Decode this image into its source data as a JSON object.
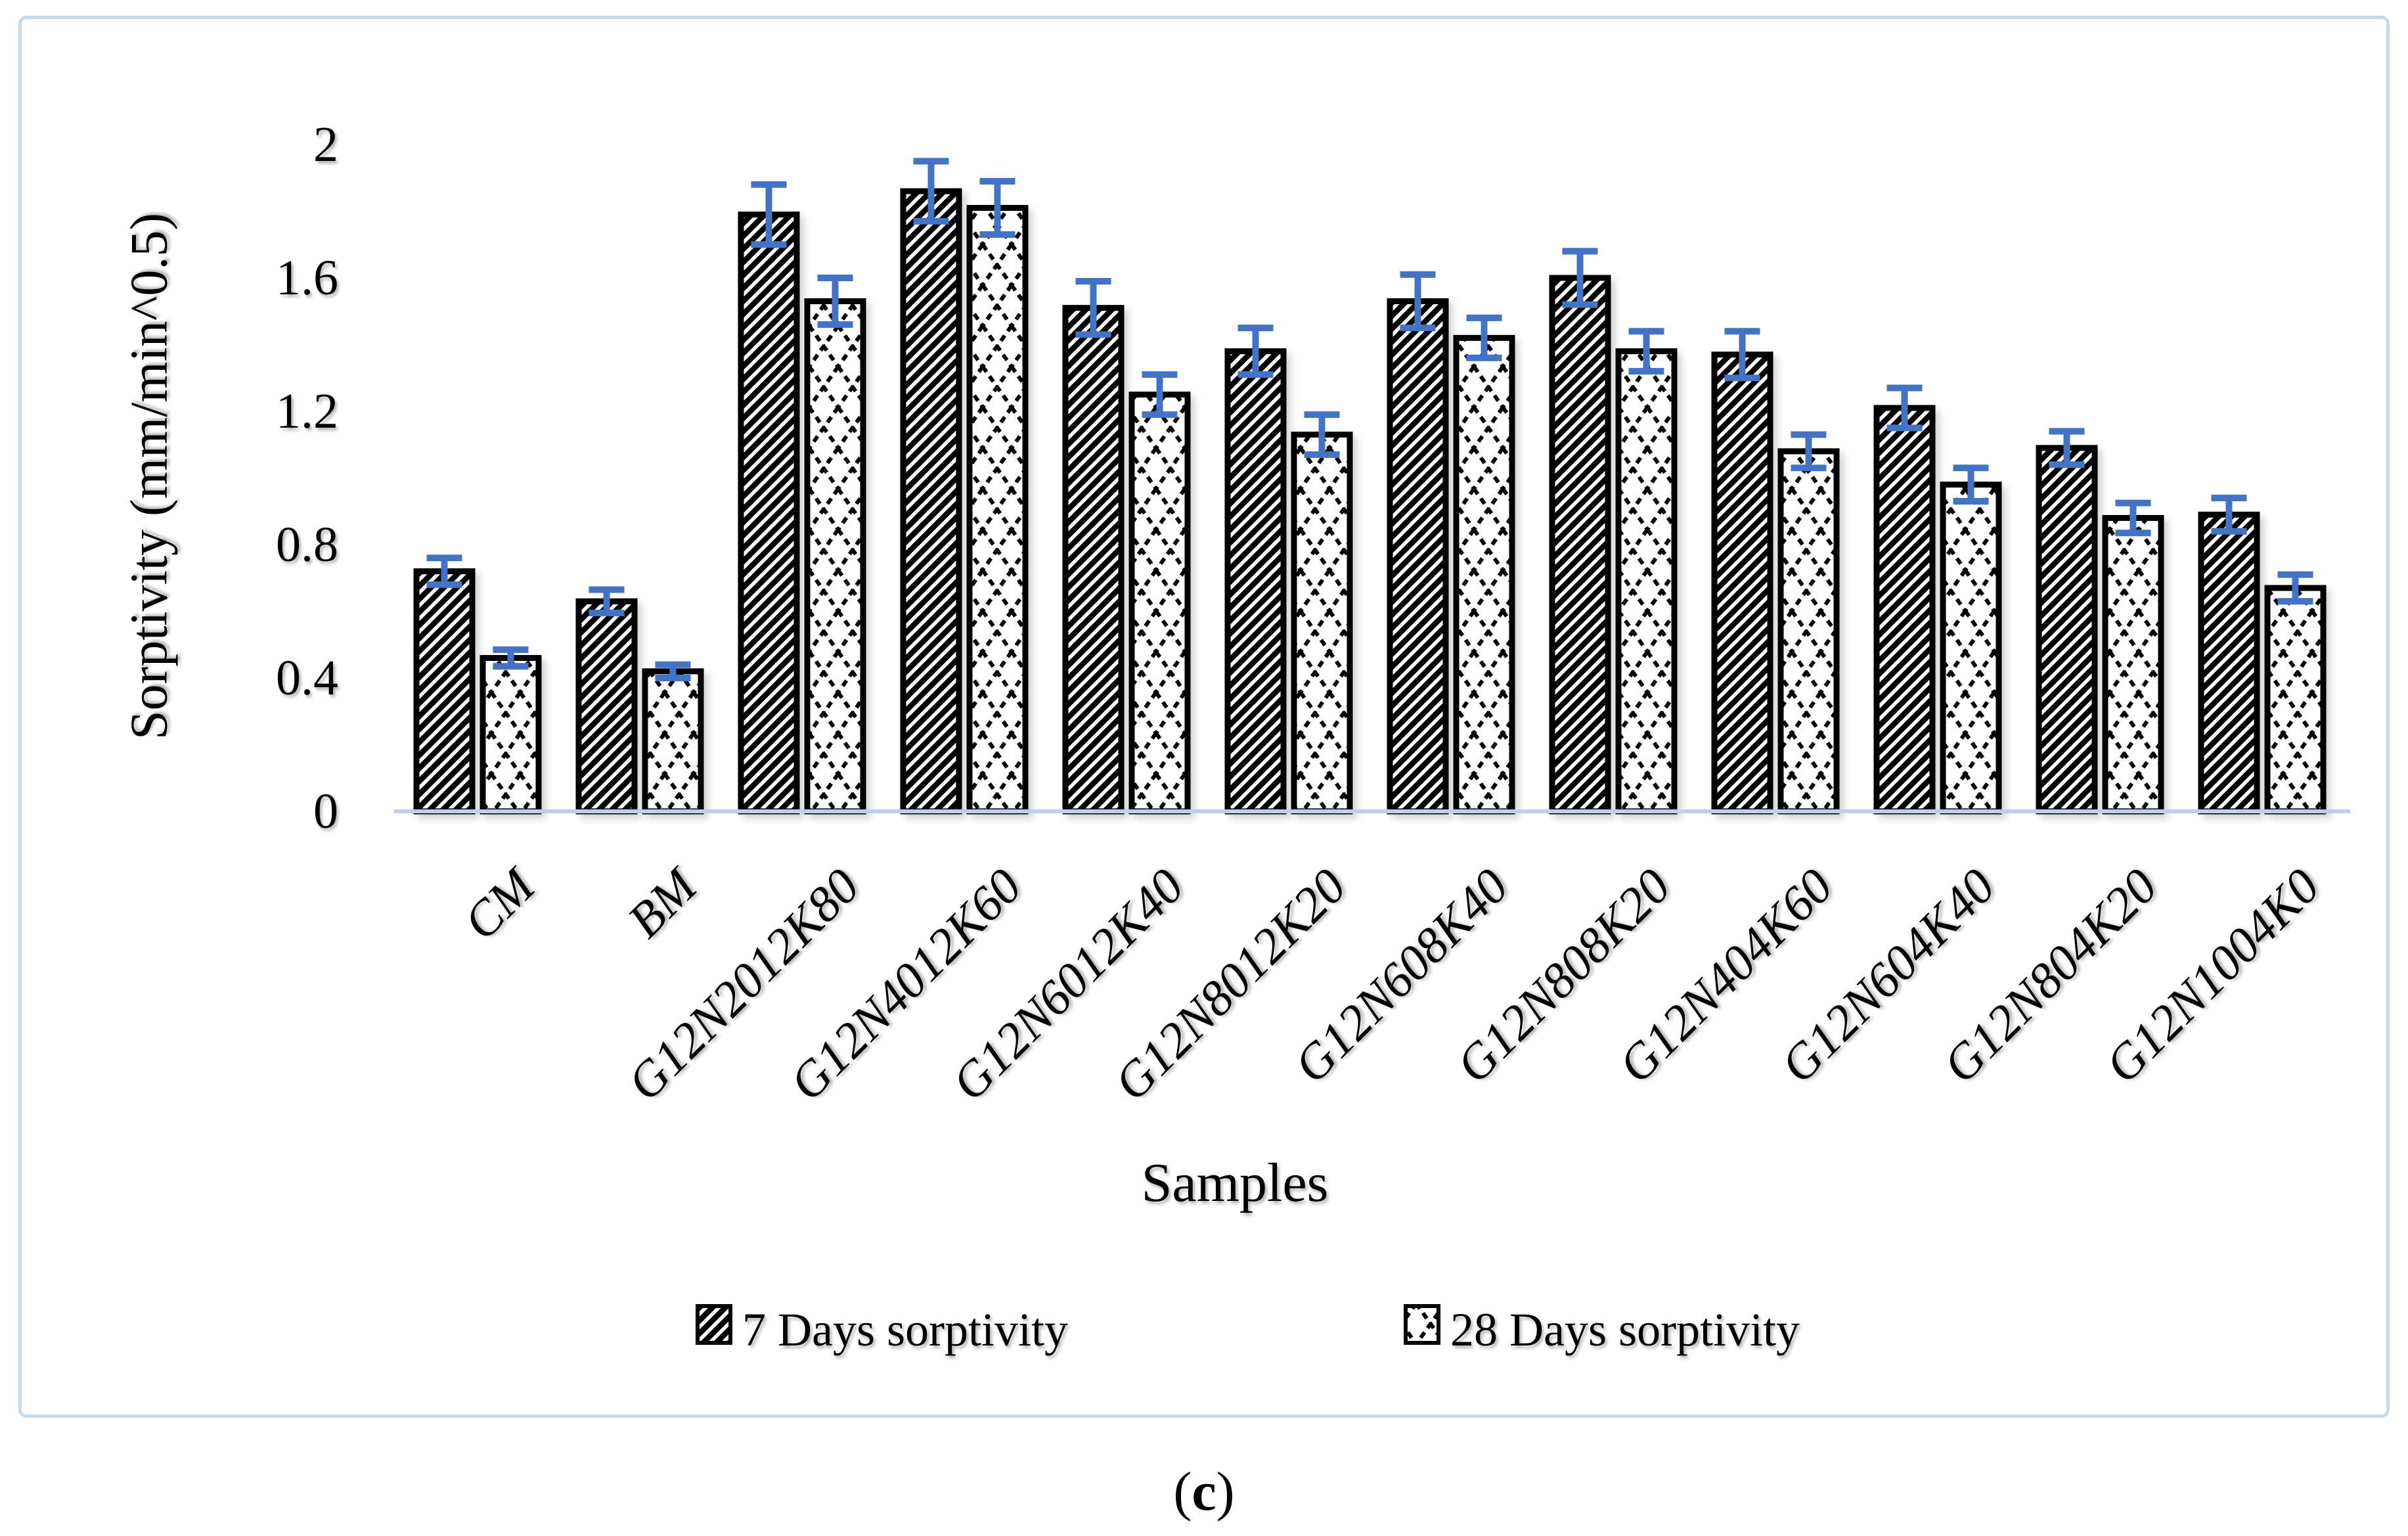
{
  "figure": {
    "caption_open": "(",
    "caption_letter": "c",
    "caption_close": ")"
  },
  "chart_data": {
    "type": "bar",
    "title": "",
    "xlabel": "Samples",
    "ylabel": "Sorptivity (mm/min^0.5)",
    "categories": [
      "CM",
      "BM",
      "G12N2012K80",
      "G12N4012K60",
      "G12N6012K40",
      "G12N8012K20",
      "G12N608K40",
      "G12N808K20",
      "G12N404K60",
      "G12N604K40",
      "G12N804K20",
      "G12N1004K0"
    ],
    "series": [
      {
        "name": "7 Days sorptivity",
        "pattern": "diagonal-stripes",
        "values": [
          0.72,
          0.63,
          1.79,
          1.86,
          1.51,
          1.38,
          1.53,
          1.6,
          1.37,
          1.21,
          1.09,
          0.89
        ],
        "errors": [
          0.04,
          0.035,
          0.09,
          0.09,
          0.08,
          0.07,
          0.08,
          0.08,
          0.07,
          0.06,
          0.05,
          0.05
        ]
      },
      {
        "name": "28 Days sorptivity",
        "pattern": "diamond-crosshatch",
        "values": [
          0.46,
          0.42,
          1.53,
          1.81,
          1.25,
          1.13,
          1.42,
          1.38,
          1.08,
          0.98,
          0.88,
          0.67
        ],
        "errors": [
          0.025,
          0.02,
          0.07,
          0.08,
          0.06,
          0.06,
          0.06,
          0.06,
          0.05,
          0.05,
          0.045,
          0.04
        ]
      }
    ],
    "ylim": [
      0,
      2
    ],
    "yticks": [
      0,
      0.4,
      0.8,
      1.2,
      1.6,
      2
    ],
    "ytick_labels": [
      "0",
      "0.4",
      "0.8",
      "1.2",
      "1.6",
      "2"
    ],
    "grid": false,
    "legend_position": "bottom",
    "colors": {
      "error_bar": "#4472C4",
      "axis_line": "#BDD0E8",
      "bar_fill": "#FFFFFF",
      "bar_stroke": "#000000",
      "figure_border": "#C7D9ED"
    }
  }
}
